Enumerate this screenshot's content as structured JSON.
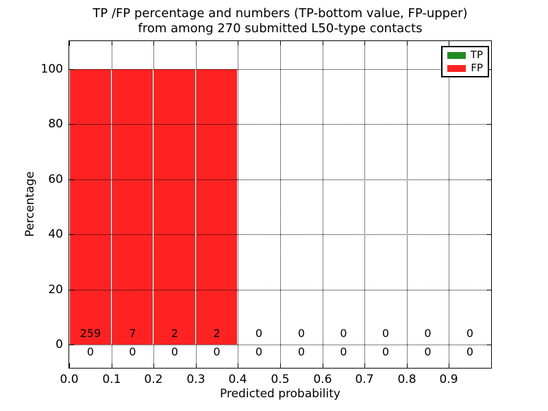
{
  "title": {
    "line1": "TP /FP percentage and numbers (TP-bottom value, FP-upper)",
    "line2": "from among 270 submitted L50-type contacts"
  },
  "axes": {
    "xlabel": "Predicted probability",
    "ylabel": "Percentage",
    "xticks": [
      "0.0",
      "0.1",
      "0.2",
      "0.3",
      "0.4",
      "0.5",
      "0.6",
      "0.7",
      "0.8",
      "0.9"
    ],
    "yticks": [
      "0",
      "20",
      "40",
      "60",
      "80",
      "100"
    ]
  },
  "legend": {
    "position": "upper-right",
    "items": [
      {
        "label": "TP",
        "color": "#228b22"
      },
      {
        "label": "FP",
        "color": "#ff2222"
      }
    ]
  },
  "chart_data": {
    "type": "bar",
    "title": "TP /FP percentage and numbers (TP-bottom value, FP-upper) from among 270 submitted L50-type contacts",
    "xlabel": "Predicted probability",
    "ylabel": "Percentage",
    "xlim": [
      0.0,
      1.0
    ],
    "ylim": [
      -9,
      110
    ],
    "grid": true,
    "grid_style": "dotted",
    "legend_position": "upper right",
    "total_submitted_contacts": 270,
    "bin_edges": [
      0.0,
      0.1,
      0.2,
      0.3,
      0.4,
      0.5,
      0.6,
      0.7,
      0.8,
      0.9,
      1.0
    ],
    "series": [
      {
        "name": "TP",
        "color": "#228b22",
        "count_label_row": "bottom",
        "counts": [
          0,
          0,
          0,
          0,
          0,
          0,
          0,
          0,
          0,
          0
        ],
        "percentages": [
          0,
          0,
          0,
          0,
          0,
          0,
          0,
          0,
          0,
          0
        ]
      },
      {
        "name": "FP",
        "color": "#ff2222",
        "count_label_row": "top",
        "counts": [
          259,
          7,
          2,
          2,
          0,
          0,
          0,
          0,
          0,
          0
        ],
        "percentages": [
          100,
          100,
          100,
          100,
          0,
          0,
          0,
          0,
          0,
          0
        ]
      }
    ]
  }
}
